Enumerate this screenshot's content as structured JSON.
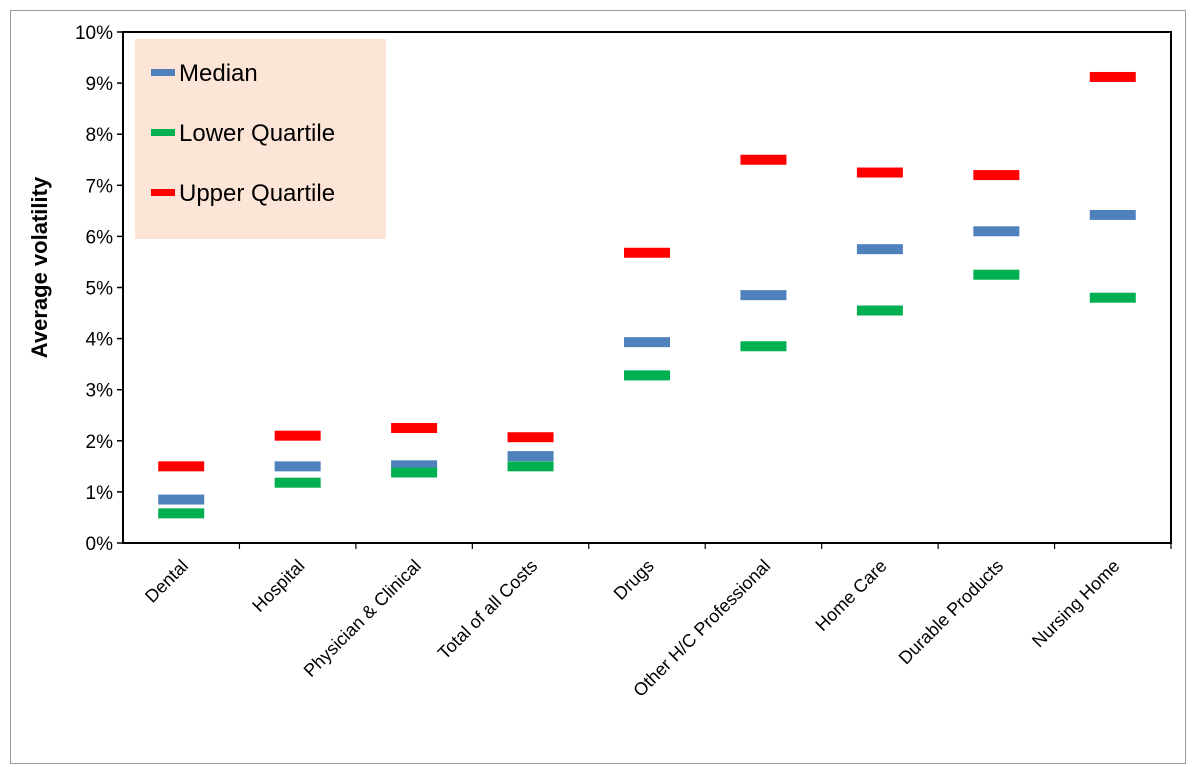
{
  "chart_data": {
    "type": "scatter",
    "ylabel": "Average  volatility",
    "xlabel": "",
    "ylim": [
      0,
      10
    ],
    "y_unit": "%",
    "yticks": [
      "0%",
      "1%",
      "2%",
      "3%",
      "4%",
      "5%",
      "6%",
      "7%",
      "8%",
      "9%",
      "10%"
    ],
    "categories": [
      "Dental",
      "Hospital",
      "Physician & Clinical",
      "Total of all Costs",
      "Drugs",
      "Other H/C Professional",
      "Home Care",
      "Durable Products",
      "Nursing Home"
    ],
    "series": [
      {
        "name": "Median",
        "color": "#4f81bd",
        "values": [
          0.85,
          1.5,
          1.52,
          1.7,
          3.93,
          4.85,
          5.75,
          6.1,
          6.42
        ]
      },
      {
        "name": "Lower Quartile",
        "color": "#00b050",
        "values": [
          0.58,
          1.18,
          1.38,
          1.5,
          3.28,
          3.85,
          4.55,
          5.25,
          4.8
        ]
      },
      {
        "name": "Upper Quartile",
        "color": "#ff0000",
        "values": [
          1.5,
          2.1,
          2.25,
          2.07,
          5.68,
          7.5,
          7.25,
          7.2,
          9.12
        ]
      }
    ],
    "grid": false,
    "legend_position": "top-left",
    "legend_background": "#fce4d6",
    "marker": "horizontal-dash"
  }
}
